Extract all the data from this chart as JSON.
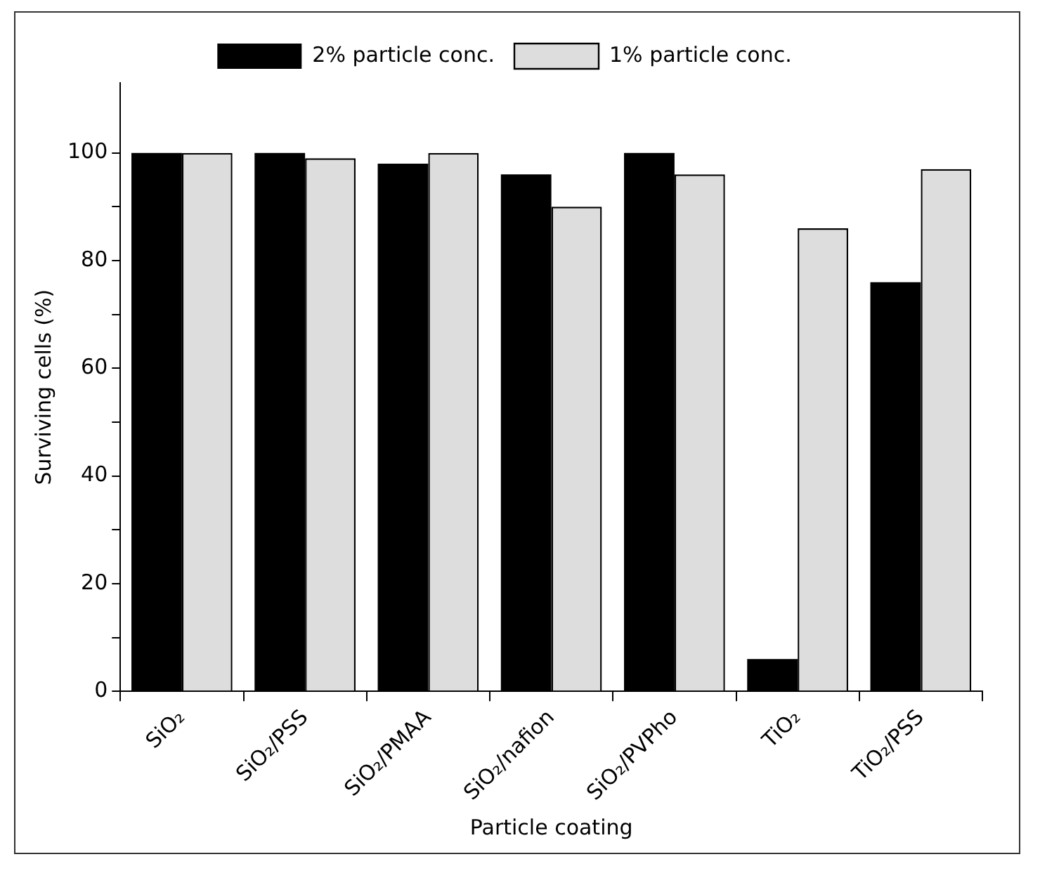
{
  "chart_data": {
    "type": "bar",
    "xlabel": "Particle coating",
    "ylabel": "Surviving cells (%)",
    "categories": [
      "SiO₂",
      "SiO₂/PSS",
      "SiO₂/PMAA",
      "SiO₂/nafion",
      "SiO₂/PVPho",
      "TiO₂",
      "TiO₂/PSS"
    ],
    "series": [
      {
        "name": "2% particle conc.",
        "color": "#000000",
        "values": [
          100,
          100,
          98,
          96,
          100,
          6,
          76
        ]
      },
      {
        "name": "1% particle conc.",
        "color": "#dddddd",
        "values": [
          100,
          99,
          100,
          90,
          96,
          86,
          97
        ]
      }
    ],
    "ylim": [
      0,
      113
    ],
    "yticks": [
      0,
      {
        "value": 10,
        "label": null
      },
      20,
      {
        "value": 30,
        "label": null
      },
      40,
      {
        "value": 50,
        "label": null
      },
      60,
      {
        "value": 70,
        "label": null
      },
      80,
      {
        "value": 90,
        "label": null
      },
      100
    ],
    "grid": false,
    "legend": "top"
  }
}
